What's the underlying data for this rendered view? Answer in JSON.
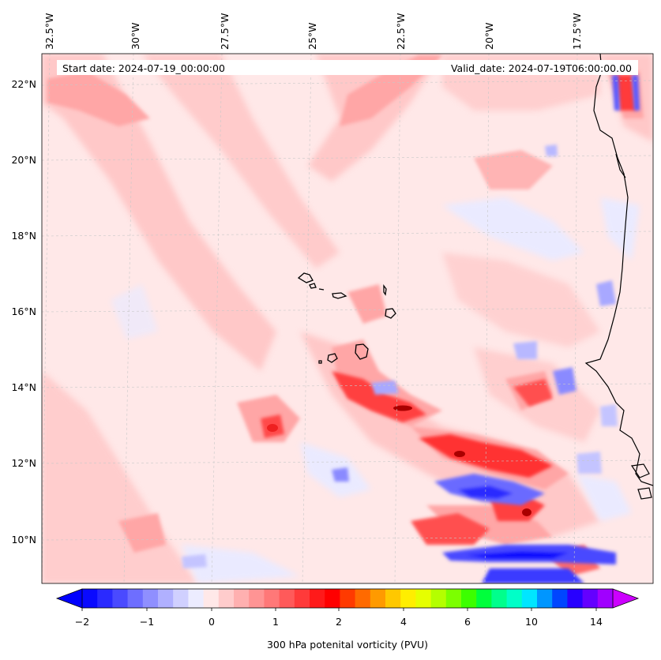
{
  "header": {
    "start_date": "Start date: 2024-07-19_00:00:00",
    "valid_date": "Valid_date: 2024-07-19T06:00:00.00"
  },
  "longitude_labels": [
    "32.5°W",
    "30°W",
    "27.5°W",
    "25°W",
    "22.5°W",
    "20°W",
    "17.5°W"
  ],
  "latitude_labels": [
    "22°N",
    "20°N",
    "18°N",
    "16°N",
    "14°N",
    "12°N",
    "10°N"
  ],
  "colorbar": {
    "title": "300 hPa potenital vorticity (PVU)",
    "tick_labels": [
      "−2",
      "−1",
      "0",
      "1",
      "2",
      "4",
      "6",
      "10",
      "14"
    ],
    "colors": [
      "#0a0aff",
      "#2a2aff",
      "#4a4aff",
      "#6e6eff",
      "#8f8fff",
      "#b0b0ff",
      "#d0d0ff",
      "#ececff",
      "#ffe8e8",
      "#ffcccc",
      "#ffb0b0",
      "#ff9494",
      "#ff7878",
      "#ff5a5a",
      "#ff3a3a",
      "#ff1a1a",
      "#ff0000",
      "#ff3a00",
      "#ff6a00",
      "#ff9a00",
      "#ffc800",
      "#ffee00",
      "#e6ff00",
      "#b4ff00",
      "#7cff00",
      "#3cff00",
      "#00ff3c",
      "#00ff8c",
      "#00ffc8",
      "#00e6ff",
      "#0096ff",
      "#0046ff",
      "#2800ff",
      "#6400ff",
      "#a000ff"
    ],
    "under_color": "#0000ff",
    "over_color": "#cc00ff"
  },
  "colors": {
    "background_pale_pink": "#ffe8e8",
    "light_pink": "#ffcccc",
    "mid_pink": "#ffa6a6",
    "red": "#ff3030",
    "dark_red": "#cc0000",
    "pale_blue": "#ececff",
    "light_blue": "#c4c4ff",
    "blue": "#3030ff",
    "coast": "#000000"
  }
}
